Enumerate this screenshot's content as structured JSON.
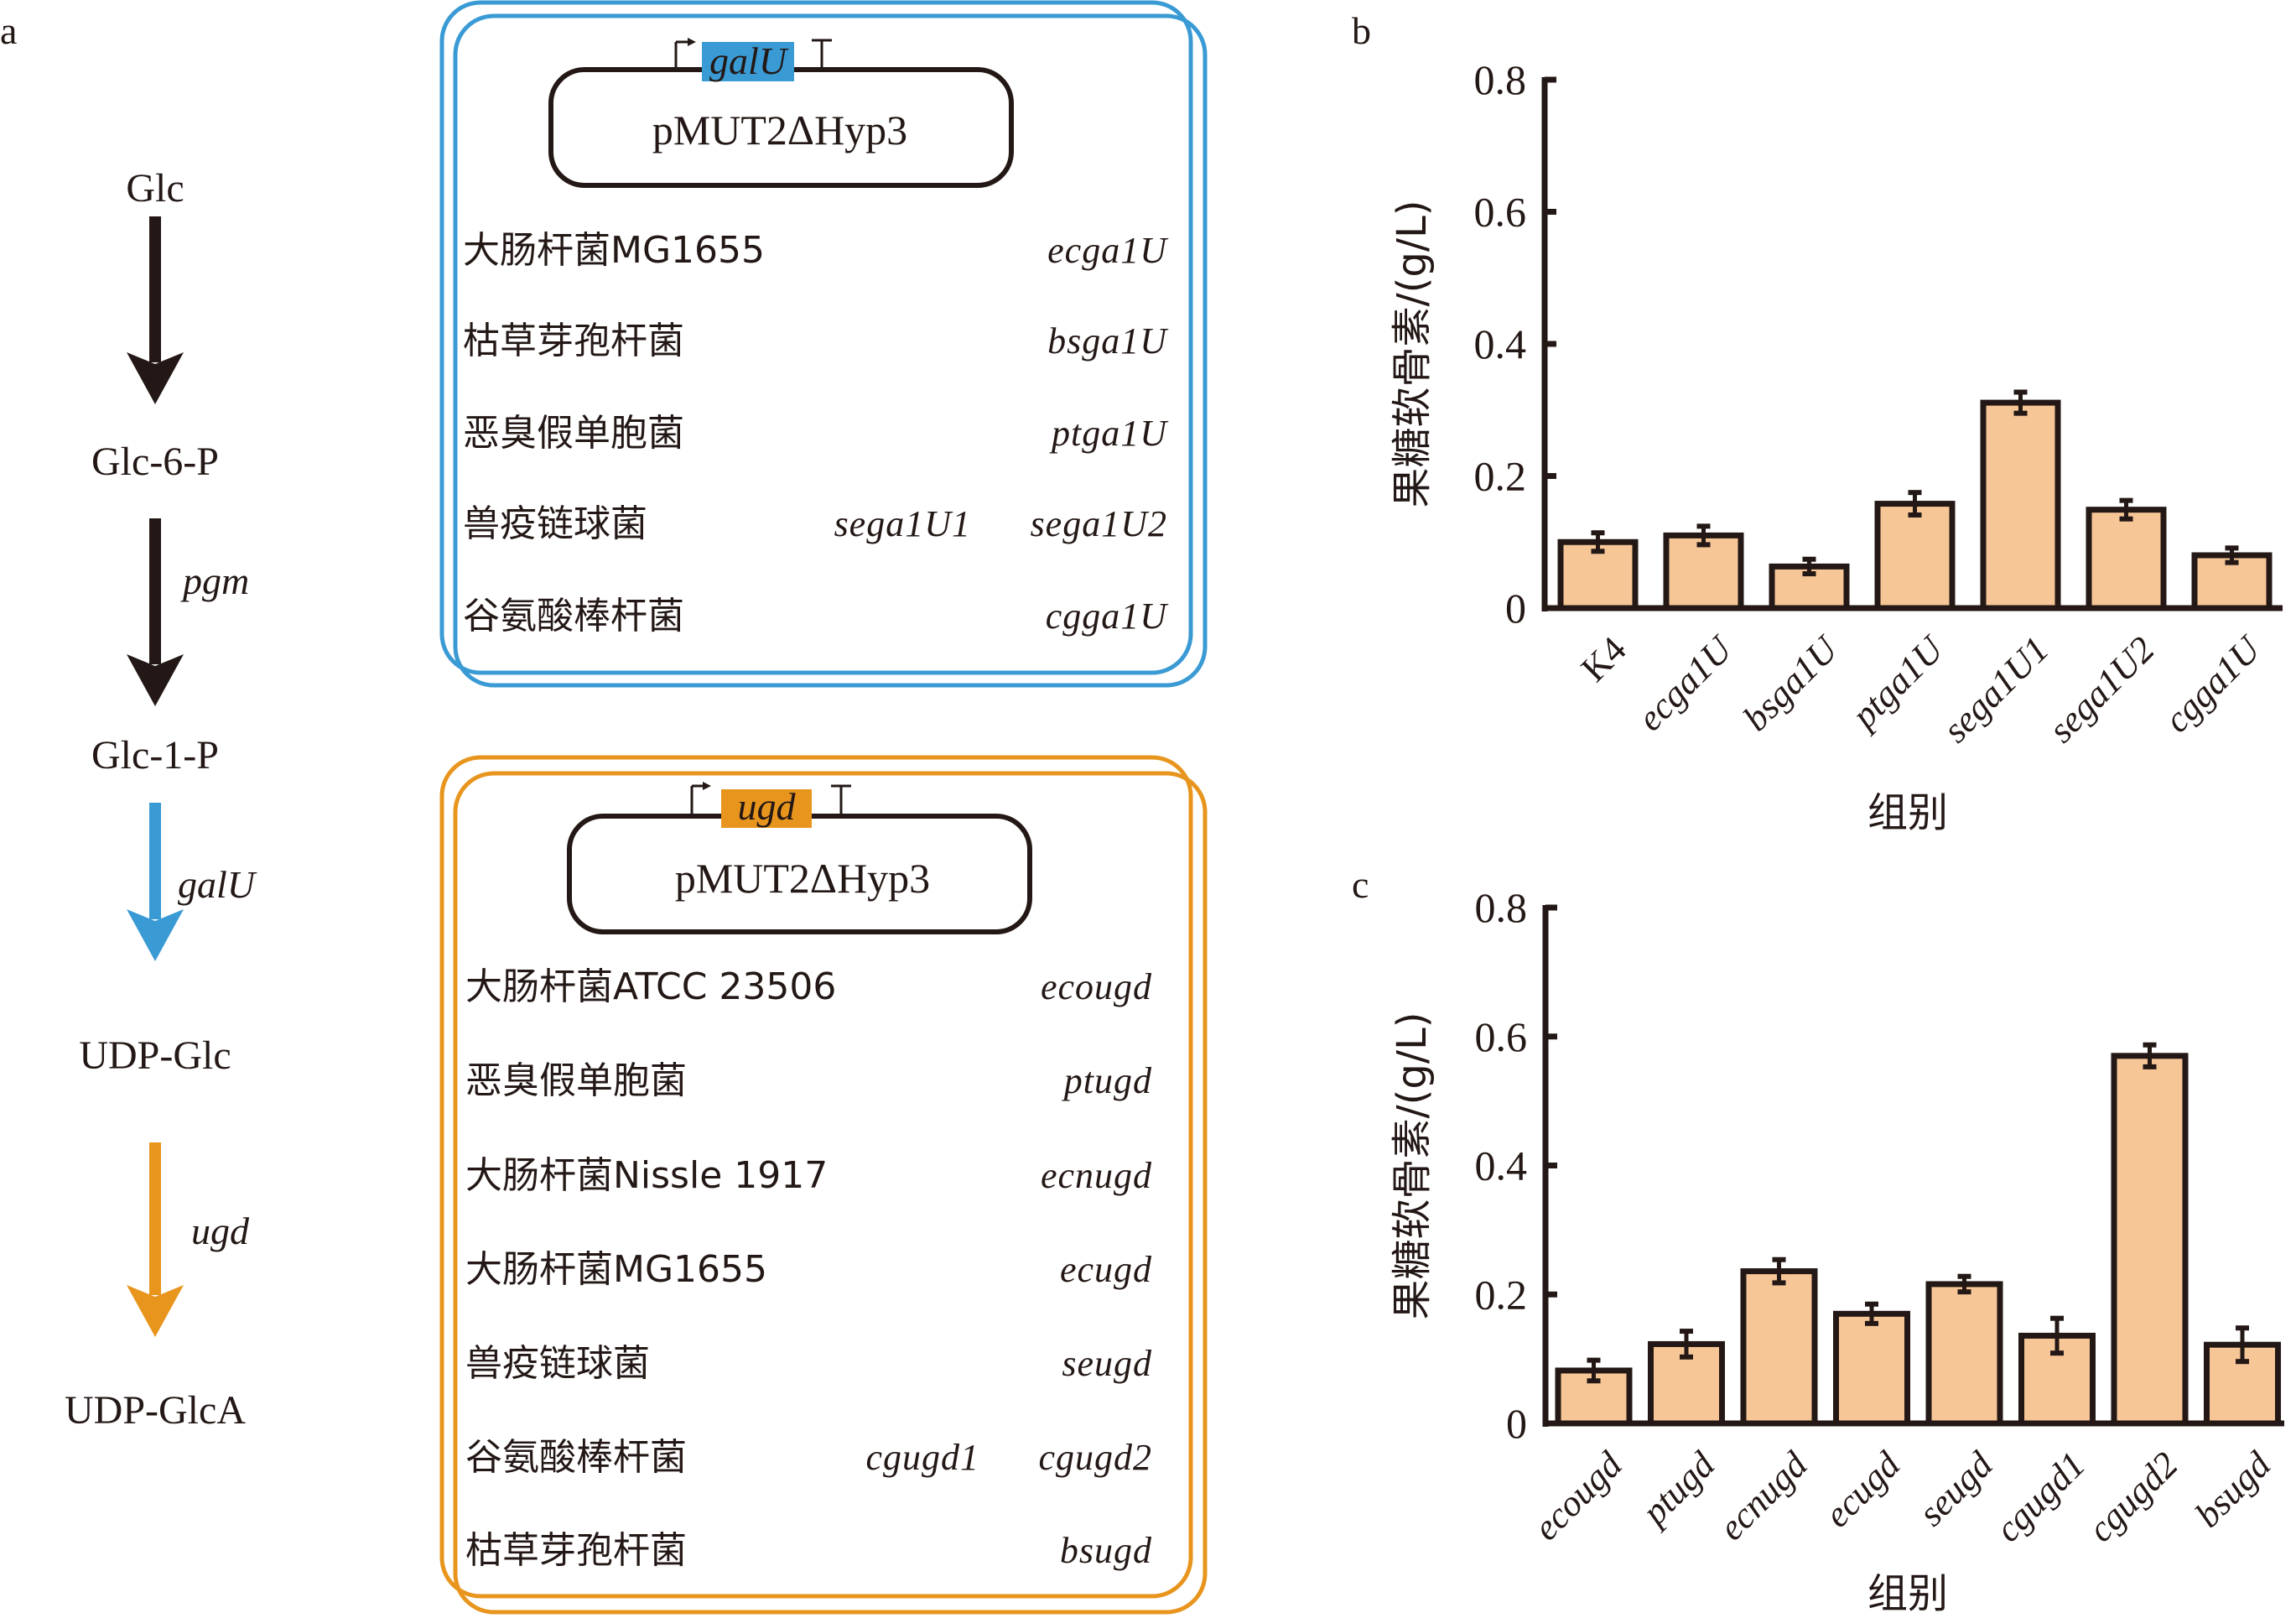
{
  "colors": {
    "ink": "#231815",
    "galU_blue": "#3A9AD4",
    "ugd_orange": "#E8951E",
    "bar_fill": "#F7C697",
    "bar_edge": "#231815"
  },
  "panel_a": {
    "letter": "a",
    "pathway": {
      "metabolites": [
        "Glc",
        "Glc-6-P",
        "Glc-1-P",
        "UDP-Glc",
        "UDP-GlcA"
      ],
      "steps": [
        {
          "enzyme": "",
          "color": "#231815"
        },
        {
          "enzyme": "pgm",
          "color": "#231815"
        },
        {
          "enzyme": "galU",
          "color": "#3A9AD4"
        },
        {
          "enzyme": "ugd",
          "color": "#E8951E"
        }
      ]
    },
    "galU_box": {
      "gene": "galU",
      "plasmid": "pMUT2ΔHyp3",
      "rows": [
        {
          "organism": "大肠杆菌MG1655",
          "genes": [
            "ecga1U"
          ]
        },
        {
          "organism": "枯草芽孢杆菌",
          "genes": [
            "bsga1U"
          ]
        },
        {
          "organism": "恶臭假单胞菌",
          "genes": [
            "ptga1U"
          ]
        },
        {
          "organism": "兽疫链球菌",
          "genes": [
            "sega1U1",
            "sega1U2"
          ]
        },
        {
          "organism": "谷氨酸棒杆菌",
          "genes": [
            "cgga1U"
          ]
        }
      ]
    },
    "ugd_box": {
      "gene": "ugd",
      "plasmid": "pMUT2ΔHyp3",
      "rows": [
        {
          "organism": "大肠杆菌ATCC 23506",
          "genes": [
            "ecougd"
          ]
        },
        {
          "organism": "恶臭假单胞菌",
          "genes": [
            "ptugd"
          ]
        },
        {
          "organism": "大肠杆菌Nissle 1917",
          "genes": [
            "ecnugd"
          ]
        },
        {
          "organism": "大肠杆菌MG1655",
          "genes": [
            "ecugd"
          ]
        },
        {
          "organism": "兽疫链球菌",
          "genes": [
            "seugd"
          ]
        },
        {
          "organism": "谷氨酸棒杆菌",
          "genes": [
            "cgugd1",
            "cgugd2"
          ]
        },
        {
          "organism": "枯草芽孢杆菌",
          "genes": [
            "bsugd"
          ]
        }
      ]
    }
  },
  "chart_data": [
    {
      "panel": "b",
      "type": "bar",
      "title": "",
      "xlabel": "组别",
      "ylabel": "果糖软骨素/(g/L)",
      "ylim": [
        0,
        0.8
      ],
      "yticks": [
        0,
        0.2,
        0.4,
        0.6,
        0.8
      ],
      "ytick_labels": [
        "0",
        "0.2",
        "0.4",
        "0.6",
        "0.8"
      ],
      "grid": false,
      "categories": [
        "K4",
        "ecga1U",
        "bsga1U",
        "ptga1U",
        "sega1U1",
        "sega1U2",
        "cgga1U"
      ],
      "category_italic": [
        false,
        true,
        true,
        true,
        true,
        true,
        true
      ],
      "values": [
        0.1,
        0.11,
        0.063,
        0.158,
        0.311,
        0.149,
        0.08
      ],
      "errors": [
        0.014,
        0.014,
        0.011,
        0.017,
        0.016,
        0.014,
        0.011
      ]
    },
    {
      "panel": "c",
      "type": "bar",
      "title": "",
      "xlabel": "组别",
      "ylabel": "果糖软骨素/(g/L)",
      "ylim": [
        0,
        0.8
      ],
      "yticks": [
        0,
        0.2,
        0.4,
        0.6,
        0.8
      ],
      "ytick_labels": [
        "0",
        "0.2",
        "0.4",
        "0.6",
        "0.8"
      ],
      "grid": false,
      "categories": [
        "ecougd",
        "ptugd",
        "ecnugd",
        "ecugd",
        "seugd",
        "cgugd1",
        "cgugd2",
        "bsugd"
      ],
      "category_italic": [
        true,
        true,
        true,
        true,
        true,
        true,
        true,
        true
      ],
      "values": [
        0.082,
        0.123,
        0.236,
        0.17,
        0.216,
        0.136,
        0.57,
        0.122
      ],
      "errors": [
        0.016,
        0.02,
        0.018,
        0.015,
        0.012,
        0.027,
        0.017,
        0.026
      ]
    }
  ]
}
